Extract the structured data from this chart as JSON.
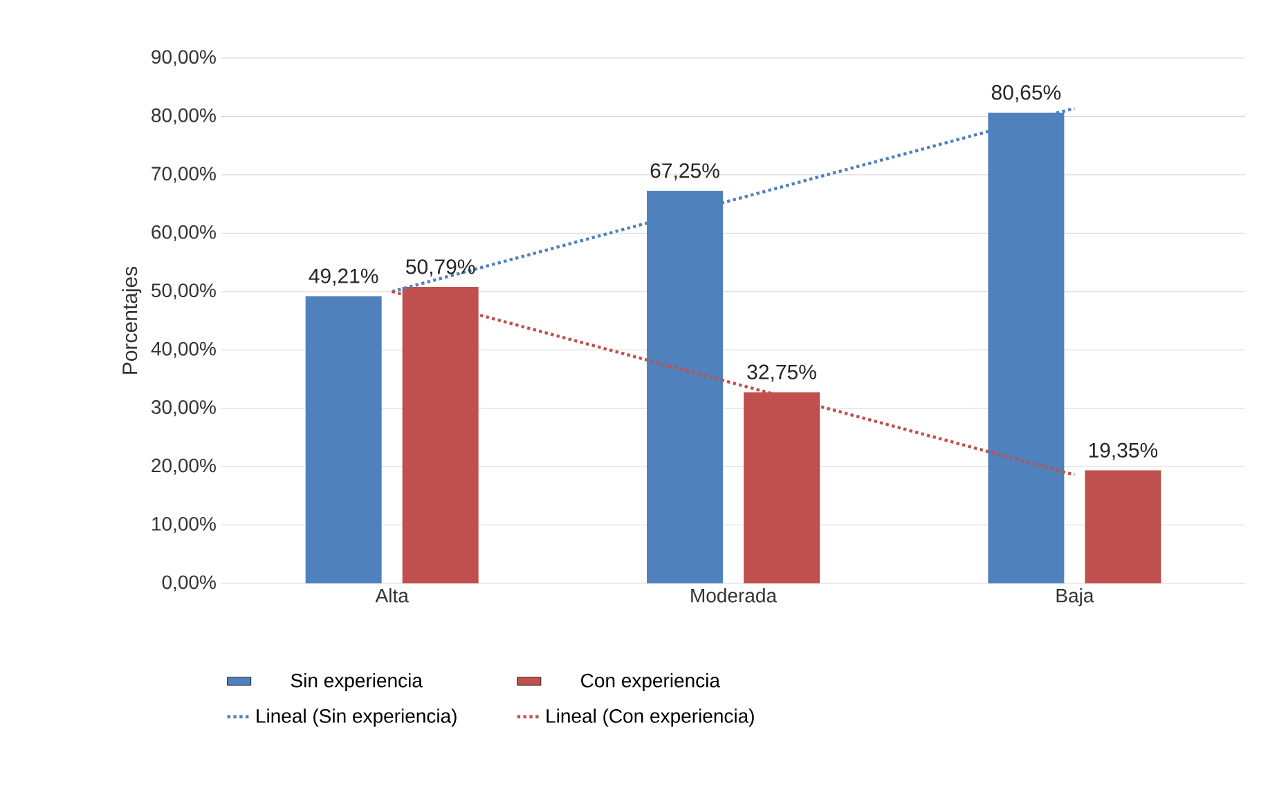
{
  "chart_data": {
    "type": "bar",
    "ylabel": "Porcentajes",
    "categories": [
      "Alta",
      "Moderada",
      "Baja"
    ],
    "series": [
      {
        "name": "Sin experiencia",
        "color": "#4f81bd",
        "values": [
          49.21,
          67.25,
          80.65
        ],
        "value_labels": [
          "49,21%",
          "67,25%",
          "80,65%"
        ]
      },
      {
        "name": "Con experiencia",
        "color": "#c0504d",
        "values": [
          50.79,
          32.75,
          19.35
        ],
        "value_labels": [
          "50,79%",
          "32,75%",
          "19,35%"
        ]
      },
      {
        "name": "Lineal (Sin experiencia)",
        "type": "line",
        "line_style": "dotted",
        "marker": "none",
        "color": "#4f81bd",
        "values": [
          50.0,
          65.7,
          81.4
        ]
      },
      {
        "name": "Lineal (Con experiencia)",
        "type": "line",
        "line_style": "dotted",
        "marker": "none",
        "color": "#c0504d",
        "values": [
          50.0,
          34.3,
          18.6
        ]
      }
    ],
    "ylim": [
      0,
      90
    ],
    "yticks": [
      {
        "value": 0,
        "label": "0,00%"
      },
      {
        "value": 10,
        "label": "10,00%"
      },
      {
        "value": 20,
        "label": "20,00%"
      },
      {
        "value": 30,
        "label": "30,00%"
      },
      {
        "value": 40,
        "label": "40,00%"
      },
      {
        "value": 50,
        "label": "50,00%"
      },
      {
        "value": 60,
        "label": "60,00%"
      },
      {
        "value": 70,
        "label": "70,00%"
      },
      {
        "value": 80,
        "label": "80,00%"
      },
      {
        "value": 90,
        "label": "90,00%"
      }
    ],
    "grid": "y",
    "legend": "bottom"
  }
}
